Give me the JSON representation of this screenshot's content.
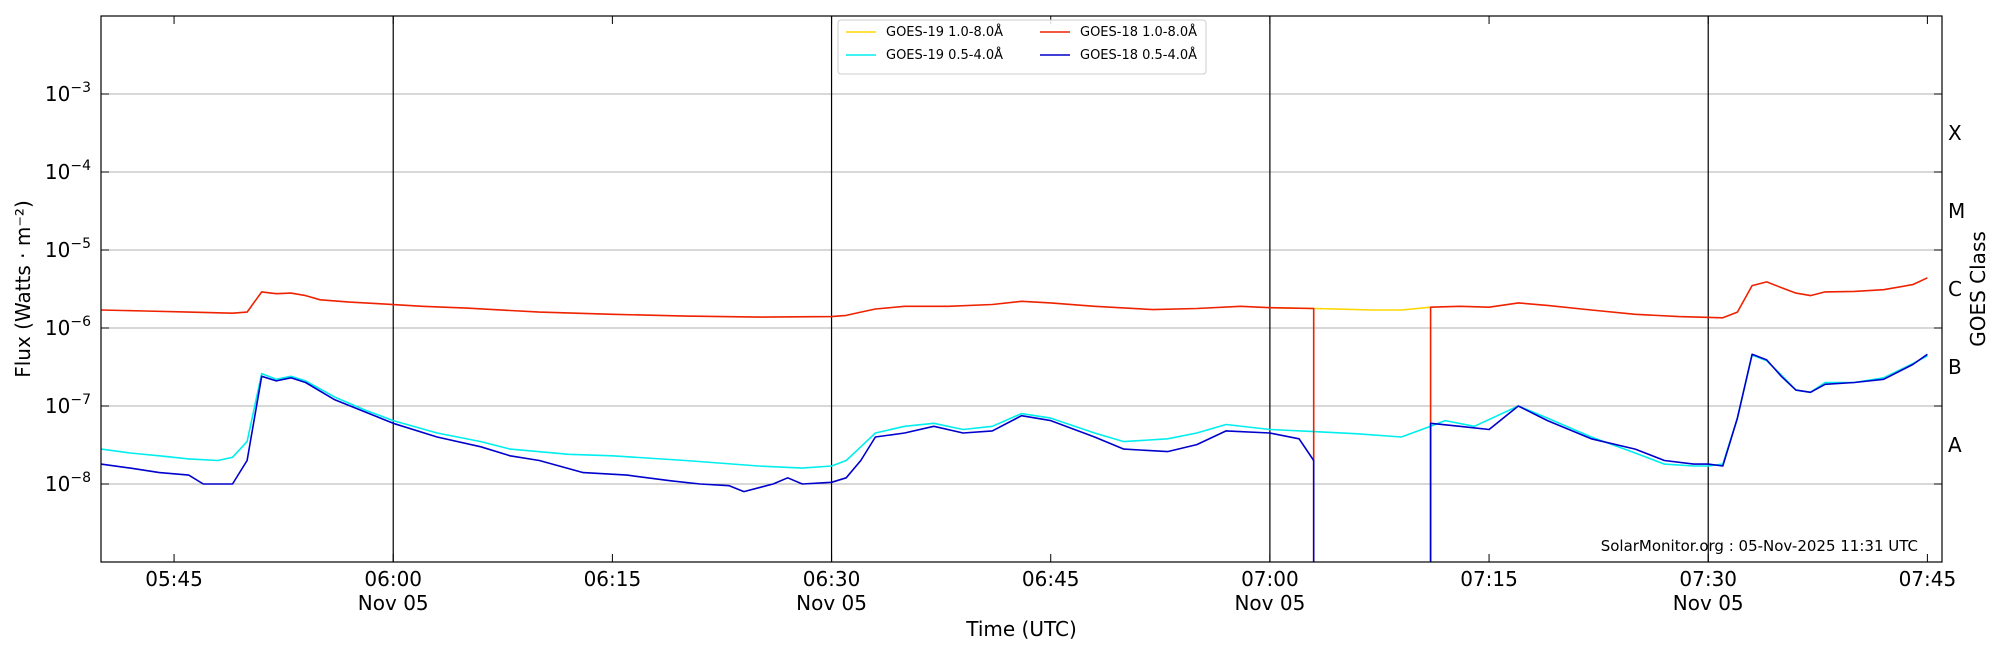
{
  "chart_data": {
    "type": "line",
    "xlabel": "Time (UTC)",
    "ylabel": "Flux (Watts · m⁻²)",
    "y2label": "GOES Class",
    "yscale": "log",
    "ylim": [
      1e-09,
      0.01
    ],
    "xlim": [
      "05:40",
      "07:46"
    ],
    "x_ticks": [
      {
        "time": "05:45",
        "label": "05:45",
        "date": ""
      },
      {
        "time": "06:00",
        "label": "06:00",
        "date": "Nov 05"
      },
      {
        "time": "06:15",
        "label": "06:15",
        "date": ""
      },
      {
        "time": "06:30",
        "label": "06:30",
        "date": "Nov 05"
      },
      {
        "time": "06:45",
        "label": "06:45",
        "date": ""
      },
      {
        "time": "07:00",
        "label": "07:00",
        "date": "Nov 05"
      },
      {
        "time": "07:15",
        "label": "07:15",
        "date": ""
      },
      {
        "time": "07:30",
        "label": "07:30",
        "date": "Nov 05"
      },
      {
        "time": "07:45",
        "label": "07:45",
        "date": ""
      }
    ],
    "y_ticks": [
      {
        "value": 1e-08,
        "base": "10",
        "exp": "−8"
      },
      {
        "value": 1e-07,
        "base": "10",
        "exp": "−7"
      },
      {
        "value": 1e-06,
        "base": "10",
        "exp": "−6"
      },
      {
        "value": 1e-05,
        "base": "10",
        "exp": "−5"
      },
      {
        "value": 0.0001,
        "base": "10",
        "exp": "−4"
      },
      {
        "value": 0.001,
        "base": "10",
        "exp": "−3"
      }
    ],
    "goes_classes": [
      {
        "label": "A",
        "value": 3.16e-08
      },
      {
        "label": "B",
        "value": 3.16e-07
      },
      {
        "label": "C",
        "value": 3.16e-06
      },
      {
        "label": "M",
        "value": 3.16e-05
      },
      {
        "label": "X",
        "value": 0.000316
      }
    ],
    "grid": true,
    "vlines": [
      "06:00",
      "06:30",
      "07:00",
      "07:30"
    ],
    "legend_position": "top-center",
    "series": [
      {
        "name": "GOES-19 1.0-8.0Å",
        "color": "#ffd700",
        "points": [
          [
            "07:00",
            1.82e-06
          ],
          [
            "07:03",
            1.78e-06
          ],
          [
            "07:05",
            1.74e-06
          ],
          [
            "07:07",
            1.7e-06
          ],
          [
            "07:09",
            1.7e-06
          ],
          [
            "07:11",
            1.85e-06
          ]
        ]
      },
      {
        "name": "GOES-18 1.0-8.0Å",
        "color": "#ee2200",
        "points": [
          [
            "05:40",
            1.7e-06
          ],
          [
            "05:43",
            1.65e-06
          ],
          [
            "05:46",
            1.6e-06
          ],
          [
            "05:49",
            1.55e-06
          ],
          [
            "05:50",
            1.6e-06
          ],
          [
            "05:51",
            2.9e-06
          ],
          [
            "05:52",
            2.75e-06
          ],
          [
            "05:53",
            2.8e-06
          ],
          [
            "05:54",
            2.6e-06
          ],
          [
            "05:55",
            2.3e-06
          ],
          [
            "05:57",
            2.15e-06
          ],
          [
            "05:59",
            2.05e-06
          ],
          [
            "06:02",
            1.9e-06
          ],
          [
            "06:05",
            1.8e-06
          ],
          [
            "06:10",
            1.6e-06
          ],
          [
            "06:15",
            1.5e-06
          ],
          [
            "06:20",
            1.42e-06
          ],
          [
            "06:25",
            1.38e-06
          ],
          [
            "06:30",
            1.4e-06
          ],
          [
            "06:31",
            1.45e-06
          ],
          [
            "06:32",
            1.6e-06
          ],
          [
            "06:33",
            1.75e-06
          ],
          [
            "06:35",
            1.9e-06
          ],
          [
            "06:38",
            1.9e-06
          ],
          [
            "06:41",
            2e-06
          ],
          [
            "06:43",
            2.2e-06
          ],
          [
            "06:45",
            2.1e-06
          ],
          [
            "06:48",
            1.9e-06
          ],
          [
            "06:52",
            1.72e-06
          ],
          [
            "06:55",
            1.78e-06
          ],
          [
            "06:58",
            1.9e-06
          ],
          [
            "07:00",
            1.82e-06
          ],
          [
            "07:03",
            1.78e-06
          ],
          [
            "07:03",
            1e-09
          ]
        ],
        "points_after_gap": [
          [
            "07:11",
            1e-09
          ],
          [
            "07:11",
            1.85e-06
          ],
          [
            "07:13",
            1.9e-06
          ],
          [
            "07:15",
            1.85e-06
          ],
          [
            "07:17",
            2.1e-06
          ],
          [
            "07:19",
            1.95e-06
          ],
          [
            "07:22",
            1.7e-06
          ],
          [
            "07:25",
            1.5e-06
          ],
          [
            "07:28",
            1.4e-06
          ],
          [
            "07:31",
            1.35e-06
          ],
          [
            "07:32",
            1.6e-06
          ],
          [
            "07:33",
            3.5e-06
          ],
          [
            "07:34",
            3.9e-06
          ],
          [
            "07:35",
            3.3e-06
          ],
          [
            "07:36",
            2.8e-06
          ],
          [
            "07:37",
            2.6e-06
          ],
          [
            "07:38",
            2.9e-06
          ],
          [
            "07:40",
            2.95e-06
          ],
          [
            "07:42",
            3.1e-06
          ],
          [
            "07:44",
            3.6e-06
          ],
          [
            "07:45",
            4.4e-06
          ]
        ]
      },
      {
        "name": "GOES-19 0.5-4.0Å",
        "color": "#00eeee",
        "points": [
          [
            "05:40",
            2.8e-08
          ],
          [
            "05:42",
            2.5e-08
          ],
          [
            "05:44",
            2.3e-08
          ],
          [
            "05:46",
            2.1e-08
          ],
          [
            "05:48",
            2e-08
          ],
          [
            "05:49",
            2.2e-08
          ],
          [
            "05:50",
            3.5e-08
          ],
          [
            "05:51",
            2.6e-07
          ],
          [
            "05:52",
            2.2e-07
          ],
          [
            "05:53",
            2.4e-07
          ],
          [
            "05:54",
            2.1e-07
          ],
          [
            "05:56",
            1.3e-07
          ],
          [
            "05:58",
            9e-08
          ],
          [
            "06:00",
            6.5e-08
          ],
          [
            "06:03",
            4.5e-08
          ],
          [
            "06:06",
            3.5e-08
          ],
          [
            "06:08",
            2.8e-08
          ],
          [
            "06:12",
            2.4e-08
          ],
          [
            "06:15",
            2.3e-08
          ],
          [
            "06:20",
            2e-08
          ],
          [
            "06:25",
            1.7e-08
          ],
          [
            "06:28",
            1.6e-08
          ],
          [
            "06:30",
            1.7e-08
          ],
          [
            "06:31",
            2e-08
          ],
          [
            "06:32",
            3e-08
          ],
          [
            "06:33",
            4.5e-08
          ],
          [
            "06:35",
            5.5e-08
          ],
          [
            "06:37",
            6e-08
          ],
          [
            "06:39",
            5e-08
          ],
          [
            "06:41",
            5.5e-08
          ],
          [
            "06:43",
            8e-08
          ],
          [
            "06:45",
            7e-08
          ],
          [
            "06:48",
            4.5e-08
          ],
          [
            "06:50",
            3.5e-08
          ],
          [
            "06:53",
            3.8e-08
          ],
          [
            "06:55",
            4.5e-08
          ],
          [
            "06:57",
            5.8e-08
          ],
          [
            "07:00",
            5e-08
          ],
          [
            "07:03",
            4.7e-08
          ],
          [
            "07:06",
            4.4e-08
          ],
          [
            "07:09",
            4e-08
          ],
          [
            "07:11",
            5.5e-08
          ],
          [
            "07:12",
            6.5e-08
          ],
          [
            "07:14",
            5.5e-08
          ],
          [
            "07:17",
            1e-07
          ],
          [
            "07:19",
            7e-08
          ],
          [
            "07:22",
            4e-08
          ],
          [
            "07:25",
            2.5e-08
          ],
          [
            "07:27",
            1.8e-08
          ],
          [
            "07:29",
            1.7e-08
          ],
          [
            "07:30",
            1.7e-08
          ],
          [
            "07:31",
            1.8e-08
          ],
          [
            "07:32",
            7e-08
          ],
          [
            "07:33",
            4.5e-07
          ],
          [
            "07:34",
            3.8e-07
          ],
          [
            "07:35",
            2.5e-07
          ],
          [
            "07:36",
            1.6e-07
          ],
          [
            "07:37",
            1.5e-07
          ],
          [
            "07:38",
            2e-07
          ],
          [
            "07:40",
            2e-07
          ],
          [
            "07:42",
            2.3e-07
          ],
          [
            "07:44",
            3.5e-07
          ],
          [
            "07:45",
            4.4e-07
          ]
        ]
      },
      {
        "name": "GOES-18 0.5-4.0Å",
        "color": "#0000cc",
        "points": [
          [
            "05:40",
            1.8e-08
          ],
          [
            "05:42",
            1.6e-08
          ],
          [
            "05:44",
            1.4e-08
          ],
          [
            "05:46",
            1.3e-08
          ],
          [
            "05:47",
            1e-08
          ],
          [
            "05:49",
            1e-08
          ],
          [
            "05:50",
            2e-08
          ],
          [
            "05:51",
            2.4e-07
          ],
          [
            "05:52",
            2.1e-07
          ],
          [
            "05:53",
            2.3e-07
          ],
          [
            "05:54",
            2e-07
          ],
          [
            "05:56",
            1.2e-07
          ],
          [
            "05:58",
            8.5e-08
          ],
          [
            "06:00",
            6e-08
          ],
          [
            "06:03",
            4e-08
          ],
          [
            "06:06",
            3e-08
          ],
          [
            "06:08",
            2.3e-08
          ],
          [
            "06:10",
            2e-08
          ],
          [
            "06:13",
            1.4e-08
          ],
          [
            "06:16",
            1.3e-08
          ],
          [
            "06:19",
            1.1e-08
          ],
          [
            "06:21",
            1e-08
          ],
          [
            "06:23",
            9.5e-09
          ],
          [
            "06:24",
            8e-09
          ],
          [
            "06:26",
            1e-08
          ],
          [
            "06:27",
            1.2e-08
          ],
          [
            "06:28",
            1e-08
          ],
          [
            "06:30",
            1.05e-08
          ],
          [
            "06:31",
            1.2e-08
          ],
          [
            "06:32",
            2e-08
          ],
          [
            "06:33",
            4e-08
          ],
          [
            "06:35",
            4.5e-08
          ],
          [
            "06:37",
            5.5e-08
          ],
          [
            "06:39",
            4.5e-08
          ],
          [
            "06:41",
            4.8e-08
          ],
          [
            "06:43",
            7.5e-08
          ],
          [
            "06:45",
            6.5e-08
          ],
          [
            "06:48",
            4e-08
          ],
          [
            "06:50",
            2.8e-08
          ],
          [
            "06:53",
            2.6e-08
          ],
          [
            "06:55",
            3.2e-08
          ],
          [
            "06:57",
            4.8e-08
          ],
          [
            "07:00",
            4.5e-08
          ],
          [
            "07:02",
            3.8e-08
          ],
          [
            "07:03",
            2e-08
          ],
          [
            "07:03",
            1e-09
          ]
        ],
        "points_after_gap": [
          [
            "07:11",
            1e-09
          ],
          [
            "07:11",
            6e-08
          ],
          [
            "07:13",
            5.5e-08
          ],
          [
            "07:15",
            5e-08
          ],
          [
            "07:17",
            1e-07
          ],
          [
            "07:19",
            6.5e-08
          ],
          [
            "07:22",
            3.8e-08
          ],
          [
            "07:25",
            2.8e-08
          ],
          [
            "07:27",
            2e-08
          ],
          [
            "07:29",
            1.8e-08
          ],
          [
            "07:30",
            1.8e-08
          ],
          [
            "07:31",
            1.7e-08
          ],
          [
            "07:32",
            7e-08
          ],
          [
            "07:33",
            4.6e-07
          ],
          [
            "07:34",
            3.9e-07
          ],
          [
            "07:35",
            2.4e-07
          ],
          [
            "07:36",
            1.6e-07
          ],
          [
            "07:37",
            1.5e-07
          ],
          [
            "07:38",
            1.9e-07
          ],
          [
            "07:40",
            2e-07
          ],
          [
            "07:42",
            2.2e-07
          ],
          [
            "07:44",
            3.4e-07
          ],
          [
            "07:45",
            4.6e-07
          ]
        ]
      }
    ],
    "credit": "SolarMonitor.org : 05-Nov-2025 11:31 UTC"
  }
}
